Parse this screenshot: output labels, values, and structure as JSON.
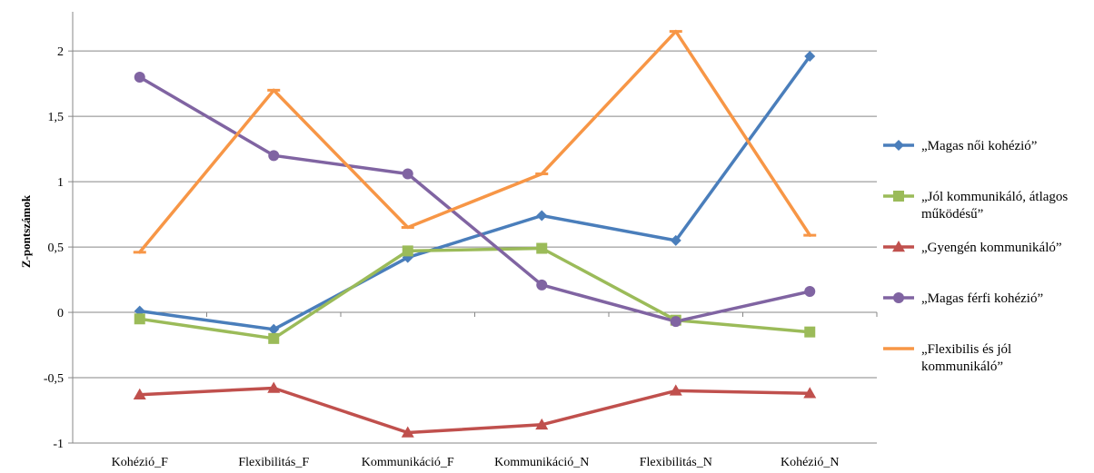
{
  "chart_data": {
    "type": "line",
    "title": "",
    "xlabel": "",
    "ylabel": "Z-pontszámok",
    "categories": [
      "Kohézió_F",
      "Flexibilitás_F",
      "Kommunikáció_F",
      "Kommunikáció_N",
      "Flexibilitás_N",
      "Kohézió_N"
    ],
    "ylim": [
      -1,
      2.3
    ],
    "yticks": [
      -1,
      -0.5,
      0,
      0.5,
      1,
      1.5,
      2
    ],
    "ytick_labels": [
      "-1",
      "-0,5",
      "0",
      "0,5",
      "1",
      "1,5",
      "2"
    ],
    "grid": "horizontal",
    "legend_position": "right",
    "series": [
      {
        "name": "„Magas női kohézió”",
        "name_lines": [
          "„Magas női kohézió”"
        ],
        "color": "#4a7ebb",
        "marker": "diamond",
        "values": [
          0.01,
          -0.13,
          0.42,
          0.74,
          0.55,
          1.96
        ]
      },
      {
        "name": "„Jól kommunikáló, átlagos működésű”",
        "name_lines": [
          "„Jól kommunikáló, átlagos",
          "működésű”"
        ],
        "color": "#9bbb59",
        "marker": "square",
        "values": [
          -0.05,
          -0.2,
          0.47,
          0.49,
          -0.06,
          -0.15
        ]
      },
      {
        "name": "„Gyengén kommunikáló”",
        "name_lines": [
          "„Gyengén kommunikáló”"
        ],
        "color": "#c0504d",
        "marker": "triangle",
        "values": [
          -0.63,
          -0.58,
          -0.92,
          -0.86,
          -0.6,
          -0.62
        ]
      },
      {
        "name": "„Magas férfi kohézió”",
        "name_lines": [
          "„Magas férfi kohézió”"
        ],
        "color": "#8064a2",
        "marker": "circle",
        "values": [
          1.8,
          1.2,
          1.06,
          0.21,
          -0.07,
          0.16
        ]
      },
      {
        "name": "„Flexibilis és jól kommunikáló”",
        "name_lines": [
          "„Flexibilis  és jól",
          "kommunikáló”"
        ],
        "color": "#f79646",
        "marker": "dash",
        "values": [
          0.46,
          1.7,
          0.65,
          1.06,
          2.15,
          0.59
        ]
      }
    ]
  }
}
